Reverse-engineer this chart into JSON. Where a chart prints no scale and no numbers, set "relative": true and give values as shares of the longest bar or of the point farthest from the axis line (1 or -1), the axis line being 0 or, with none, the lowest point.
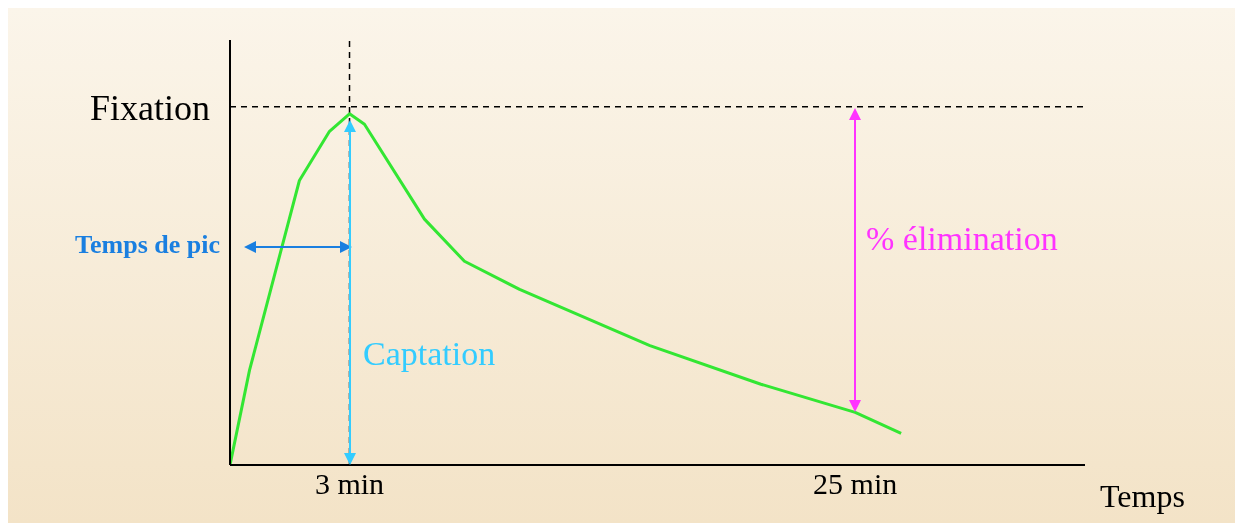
{
  "chart_data": {
    "type": "line",
    "relative": true,
    "xlabel": "Temps",
    "x": [
      -2.2,
      -1.35,
      0.82,
      2.13,
      3,
      3.65,
      6.26,
      8,
      10.4,
      16.07,
      20.9,
      25,
      27
    ],
    "series": [
      {
        "color": "#33e633",
        "values": [
          0,
          0.27,
          0.81,
          0.95,
          1,
          0.97,
          0.7,
          0.58,
          0.5,
          0.34,
          0.23,
          0.15,
          0.09
        ]
      }
    ],
    "xlim": [
      -2.2,
      35
    ],
    "xticks": [
      {
        "value": 3,
        "label": "3 min"
      },
      {
        "value": 25,
        "label": "25 min"
      }
    ],
    "ref_lines": [
      {
        "axis": "y",
        "value": 1.02,
        "label": "Fixation",
        "line_style": "dashed",
        "color": "#000000"
      },
      {
        "axis": "x",
        "value": 3,
        "label": null,
        "line_style": "dashed",
        "color": "#000000"
      }
    ],
    "annotations": [
      "Temps de pic",
      "Captation",
      "% élimination"
    ],
    "marker": "none",
    "line_style": "solid"
  }
}
